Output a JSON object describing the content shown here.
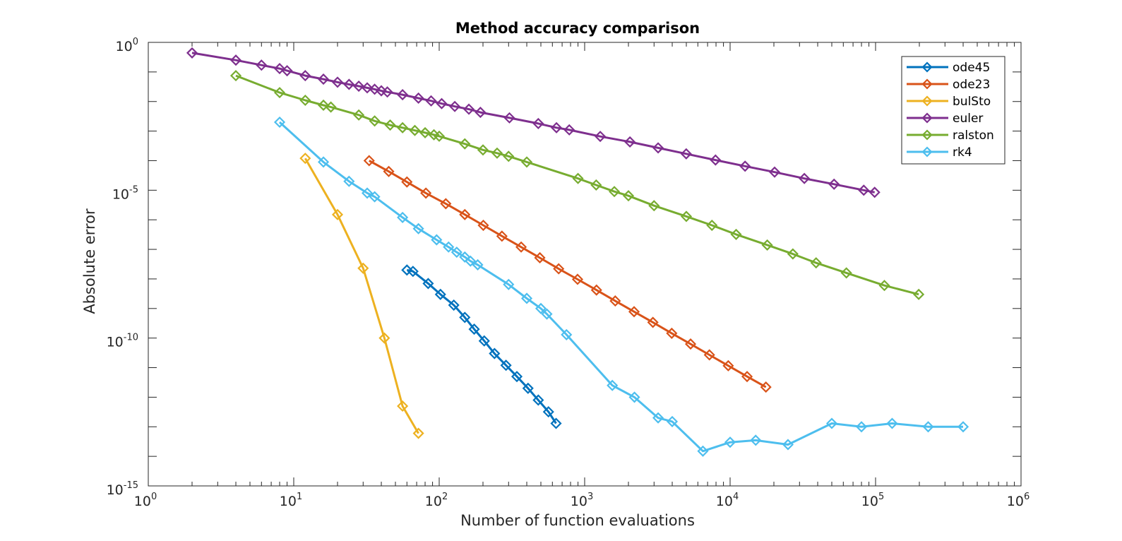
{
  "chart_data": {
    "type": "line",
    "title": "Method accuracy comparison",
    "xlabel": "Number of function evaluations",
    "ylabel": "Absolute error",
    "xscale": "log",
    "yscale": "log",
    "xlim": [
      1,
      1000000
    ],
    "ylim": [
      1e-15,
      1
    ],
    "grid": false,
    "legend_location": "top-right",
    "x_ticks": [
      {
        "base": "10",
        "exp": "0",
        "value": 1
      },
      {
        "base": "10",
        "exp": "1",
        "value": 10
      },
      {
        "base": "10",
        "exp": "2",
        "value": 100
      },
      {
        "base": "10",
        "exp": "3",
        "value": 1000
      },
      {
        "base": "10",
        "exp": "4",
        "value": 10000
      },
      {
        "base": "10",
        "exp": "5",
        "value": 100000
      },
      {
        "base": "10",
        "exp": "6",
        "value": 1000000
      }
    ],
    "y_ticks": [
      {
        "base": "10",
        "exp": "0",
        "value": 1
      },
      {
        "base": "10",
        "exp": "-5",
        "value": 1e-05
      },
      {
        "base": "10",
        "exp": "-10",
        "value": 1e-10
      },
      {
        "base": "10",
        "exp": "-15",
        "value": 1e-15
      }
    ],
    "series": [
      {
        "name": "ode45",
        "color": "#0072BD",
        "x": [
          60,
          66,
          84,
          102,
          126,
          150,
          174,
          204,
          240,
          288,
          342,
          408,
          480,
          564,
          636
        ],
        "y": [
          2e-08,
          1.8e-08,
          7e-09,
          3e-09,
          1.3e-09,
          5e-10,
          2e-10,
          8e-11,
          3e-11,
          1.2e-11,
          5e-12,
          2e-12,
          8e-13,
          3.2e-13,
          1.3e-13
        ]
      },
      {
        "name": "ode23",
        "color": "#D95319",
        "x": [
          33,
          45,
          60,
          81,
          111,
          150,
          201,
          270,
          366,
          492,
          663,
          894,
          1206,
          1623,
          2187,
          2946,
          3969,
          5349,
          7206,
          9711,
          13083,
          17622
        ],
        "y": [
          0.0001,
          4.3e-05,
          1.9e-05,
          8e-06,
          3.5e-06,
          1.5e-06,
          6.5e-07,
          2.8e-07,
          1.2e-07,
          5.2e-08,
          2.2e-08,
          9.7e-09,
          4.2e-09,
          1.8e-09,
          7.8e-10,
          3.4e-10,
          1.45e-10,
          6.3e-11,
          2.7e-11,
          1.16e-11,
          5e-12,
          2.2e-12
        ]
      },
      {
        "name": "bulSto",
        "color": "#EDB120",
        "x": [
          12,
          20,
          30,
          42,
          56,
          72
        ],
        "y": [
          0.00012,
          1.5e-06,
          2.3e-08,
          1e-10,
          5e-13,
          6e-14
        ]
      },
      {
        "name": "euler",
        "color": "#7E2F8E",
        "x": [
          2,
          4,
          6,
          8,
          9,
          12,
          16,
          20,
          24,
          28,
          32,
          36,
          40,
          44,
          56,
          72,
          88,
          104,
          128,
          160,
          192,
          304,
          480,
          640,
          784,
          1280,
          2048,
          3200,
          4992,
          7936,
          12672,
          20224,
          32384,
          51840,
          82944,
          98560
        ],
        "y": [
          0.44,
          0.25,
          0.17,
          0.13,
          0.11,
          0.075,
          0.057,
          0.045,
          0.038,
          0.033,
          0.029,
          0.026,
          0.023,
          0.021,
          0.017,
          0.013,
          0.0105,
          0.0085,
          0.0068,
          0.0055,
          0.0043,
          0.0028,
          0.0018,
          0.0013,
          0.0011,
          0.00066,
          0.00043,
          0.00027,
          0.00017,
          0.000105,
          6.5e-05,
          4.1e-05,
          2.5e-05,
          1.6e-05,
          1e-05,
          8.5e-06
        ]
      },
      {
        "name": "ralston",
        "color": "#77AC30",
        "x": [
          4,
          8,
          12,
          16,
          18,
          28,
          36,
          46,
          56,
          68,
          80,
          92,
          100,
          150,
          200,
          250,
          300,
          400,
          900,
          1200,
          1600,
          2000,
          3000,
          5000,
          7500,
          11000,
          18000,
          27000,
          39000,
          63000,
          115000,
          198000
        ],
        "y": [
          0.075,
          0.02,
          0.011,
          0.0075,
          0.0065,
          0.0035,
          0.0022,
          0.0016,
          0.0013,
          0.00105,
          0.00088,
          0.00075,
          0.00067,
          0.00037,
          0.00023,
          0.00018,
          0.00014,
          9e-05,
          2.5e-05,
          1.5e-05,
          9e-06,
          6.5e-06,
          3e-06,
          1.3e-06,
          6.5e-07,
          3.2e-07,
          1.4e-07,
          7e-08,
          3.5e-08,
          1.6e-08,
          6e-09,
          3e-09
        ]
      },
      {
        "name": "rk4",
        "color": "#4DBEEE",
        "x": [
          8,
          16,
          24,
          32,
          36,
          56,
          72,
          96,
          116,
          132,
          150,
          164,
          184,
          300,
          400,
          500,
          550,
          750,
          1550,
          2200,
          3200,
          4000,
          6500,
          10000,
          15000,
          25000,
          50000,
          80000,
          130000,
          230000,
          400000
        ],
        "y": [
          0.002,
          9e-05,
          2e-05,
          8e-06,
          6e-06,
          1.2e-06,
          5e-07,
          2.1e-07,
          1.2e-07,
          8e-08,
          5.5e-08,
          4e-08,
          3e-08,
          6.5e-09,
          2.2e-09,
          1e-09,
          6.5e-10,
          1.3e-10,
          2.5e-12,
          1e-12,
          2e-13,
          1.5e-13,
          1.5e-14,
          3e-14,
          3.5e-14,
          2.5e-14,
          1.3e-13,
          1e-13,
          1.3e-13,
          1e-13,
          1e-13
        ]
      }
    ]
  }
}
